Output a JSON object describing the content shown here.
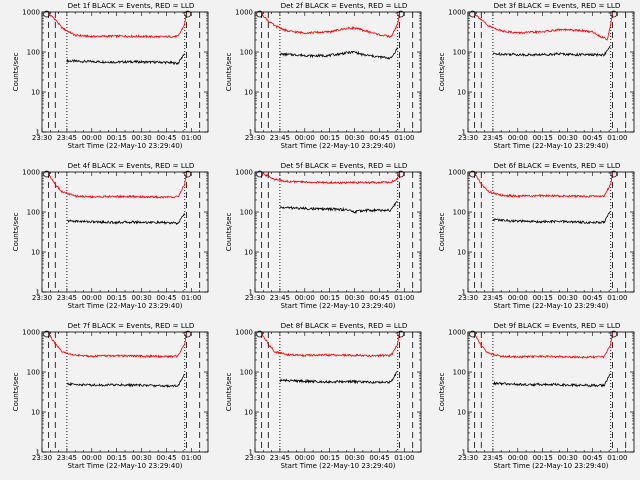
{
  "figure": {
    "xlabel": "Start Time (22-May-10 23:29:40)",
    "ylabel": "Counts/sec",
    "x_tick_labels": [
      "23:30",
      "23:45",
      "00:00",
      "00:15",
      "00:30",
      "00:45",
      "01:00"
    ],
    "y_tick_labels": [
      "1",
      "10",
      "100",
      "1000"
    ],
    "x_range_minutes": [
      0,
      100
    ],
    "y_scale": "log",
    "ylim": [
      1,
      1000
    ],
    "colors": {
      "events": "#000000",
      "lld": "#ff0000",
      "background": "#f2f2f2"
    }
  },
  "chart_data": [
    {
      "type": "line",
      "title": "Det 1f BLACK = Events, RED = LLD",
      "y_scale": "log",
      "ylim": [
        1,
        1000
      ],
      "series": [
        {
          "name": "Events",
          "color": "#000000",
          "x": [
            15,
            25,
            35,
            45,
            55,
            65,
            75,
            82,
            86
          ],
          "values": [
            60,
            58,
            57,
            56,
            57,
            56,
            55,
            52,
            95
          ]
        },
        {
          "name": "LLD",
          "color": "#ff0000",
          "x": [
            4,
            8,
            12,
            20,
            30,
            45,
            60,
            72,
            82,
            86,
            87
          ],
          "values": [
            900,
            650,
            400,
            260,
            245,
            250,
            245,
            240,
            245,
            500,
            950
          ]
        }
      ]
    },
    {
      "type": "line",
      "title": "Det 2f BLACK = Events, RED = LLD",
      "y_scale": "log",
      "ylim": [
        1,
        1000
      ],
      "series": [
        {
          "name": "Events",
          "color": "#000000",
          "x": [
            15,
            25,
            35,
            45,
            55,
            60,
            65,
            75,
            82,
            86
          ],
          "values": [
            88,
            85,
            80,
            82,
            95,
            100,
            85,
            75,
            70,
            130
          ]
        },
        {
          "name": "LLD",
          "color": "#ff0000",
          "x": [
            4,
            8,
            12,
            20,
            30,
            45,
            55,
            60,
            65,
            75,
            82,
            86,
            87
          ],
          "values": [
            900,
            600,
            450,
            330,
            300,
            320,
            390,
            400,
            350,
            270,
            240,
            500,
            950
          ]
        }
      ]
    },
    {
      "type": "line",
      "title": "Det 3f BLACK = Events, RED = LLD",
      "y_scale": "log",
      "ylim": [
        1,
        1000
      ],
      "series": [
        {
          "name": "Events",
          "color": "#000000",
          "x": [
            15,
            25,
            35,
            45,
            55,
            65,
            75,
            82,
            86
          ],
          "values": [
            90,
            88,
            85,
            86,
            90,
            86,
            85,
            85,
            140
          ]
        },
        {
          "name": "LLD",
          "color": "#ff0000",
          "x": [
            4,
            8,
            12,
            20,
            30,
            45,
            55,
            65,
            75,
            80,
            84,
            86,
            87
          ],
          "values": [
            900,
            650,
            450,
            340,
            300,
            320,
            360,
            350,
            320,
            240,
            210,
            500,
            950
          ]
        }
      ]
    },
    {
      "type": "line",
      "title": "Det 4f BLACK = Events, RED = LLD",
      "y_scale": "log",
      "ylim": [
        1,
        1000
      ],
      "series": [
        {
          "name": "Events",
          "color": "#000000",
          "x": [
            15,
            25,
            35,
            45,
            55,
            65,
            75,
            82,
            86
          ],
          "values": [
            60,
            58,
            56,
            55,
            56,
            55,
            54,
            52,
            95
          ]
        },
        {
          "name": "LLD",
          "color": "#ff0000",
          "x": [
            4,
            8,
            12,
            20,
            30,
            45,
            60,
            72,
            82,
            86,
            87
          ],
          "values": [
            900,
            500,
            320,
            250,
            240,
            245,
            240,
            235,
            240,
            500,
            950
          ]
        }
      ]
    },
    {
      "type": "line",
      "title": "Det 5f BLACK = Events, RED = LLD",
      "y_scale": "log",
      "ylim": [
        1,
        1000
      ],
      "series": [
        {
          "name": "Events",
          "color": "#000000",
          "x": [
            15,
            25,
            35,
            45,
            55,
            60,
            65,
            75,
            82,
            86
          ],
          "values": [
            130,
            125,
            120,
            118,
            115,
            100,
            110,
            110,
            110,
            200
          ]
        },
        {
          "name": "LLD",
          "color": "#ff0000",
          "x": [
            4,
            8,
            12,
            20,
            30,
            45,
            60,
            72,
            82,
            86,
            87
          ],
          "values": [
            900,
            800,
            650,
            580,
            560,
            540,
            540,
            550,
            560,
            700,
            950
          ]
        }
      ]
    },
    {
      "type": "line",
      "title": "Det 6f BLACK = Events, RED = LLD",
      "y_scale": "log",
      "ylim": [
        1,
        1000
      ],
      "series": [
        {
          "name": "Events",
          "color": "#000000",
          "x": [
            15,
            25,
            35,
            45,
            55,
            65,
            75,
            82,
            86
          ],
          "values": [
            65,
            60,
            58,
            57,
            58,
            56,
            55,
            55,
            110
          ]
        },
        {
          "name": "LLD",
          "color": "#ff0000",
          "x": [
            4,
            8,
            12,
            20,
            30,
            45,
            60,
            72,
            82,
            86,
            87
          ],
          "values": [
            900,
            500,
            330,
            260,
            250,
            255,
            250,
            245,
            250,
            500,
            950
          ]
        }
      ]
    },
    {
      "type": "line",
      "title": "Det 7f BLACK = Events, RED = LLD",
      "y_scale": "log",
      "ylim": [
        1,
        1000
      ],
      "series": [
        {
          "name": "Events",
          "color": "#000000",
          "x": [
            15,
            25,
            35,
            45,
            55,
            65,
            75,
            82,
            86
          ],
          "values": [
            50,
            48,
            47,
            48,
            47,
            46,
            45,
            46,
            90
          ]
        },
        {
          "name": "LLD",
          "color": "#ff0000",
          "x": [
            4,
            8,
            12,
            20,
            30,
            45,
            60,
            72,
            82,
            86,
            87
          ],
          "values": [
            900,
            500,
            320,
            260,
            250,
            255,
            250,
            245,
            250,
            500,
            950
          ]
        }
      ]
    },
    {
      "type": "line",
      "title": "Det 8f BLACK = Events, RED = LLD",
      "y_scale": "log",
      "ylim": [
        1,
        1000
      ],
      "series": [
        {
          "name": "Events",
          "color": "#000000",
          "x": [
            15,
            25,
            35,
            45,
            55,
            65,
            75,
            82,
            86
          ],
          "values": [
            62,
            60,
            58,
            57,
            58,
            56,
            55,
            56,
            110
          ]
        },
        {
          "name": "LLD",
          "color": "#ff0000",
          "x": [
            4,
            8,
            12,
            20,
            30,
            45,
            60,
            72,
            82,
            86,
            87
          ],
          "values": [
            900,
            500,
            320,
            270,
            260,
            265,
            260,
            255,
            260,
            500,
            950
          ]
        }
      ]
    },
    {
      "type": "line",
      "title": "Det 9f BLACK = Events, RED = LLD",
      "y_scale": "log",
      "ylim": [
        1,
        1000
      ],
      "series": [
        {
          "name": "Events",
          "color": "#000000",
          "x": [
            15,
            25,
            35,
            45,
            55,
            65,
            75,
            82,
            86
          ],
          "values": [
            52,
            50,
            48,
            49,
            48,
            47,
            46,
            46,
            95
          ]
        },
        {
          "name": "LLD",
          "color": "#ff0000",
          "x": [
            4,
            8,
            12,
            20,
            30,
            45,
            60,
            72,
            82,
            86,
            87
          ],
          "values": [
            900,
            450,
            300,
            250,
            240,
            245,
            240,
            235,
            240,
            500,
            950
          ]
        }
      ]
    }
  ]
}
